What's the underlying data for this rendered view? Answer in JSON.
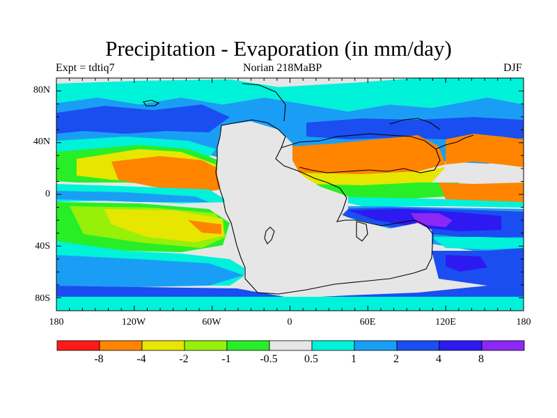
{
  "title": "Precipitation - Evaporation (in mm/day)",
  "experiment": "Expt = tdtiq7",
  "subtitle": "Norian   218MaBP",
  "season": "DJF",
  "lat_labels": [
    "80N",
    "40N",
    "0",
    "40S",
    "80S"
  ],
  "lon_labels": [
    "180",
    "120W",
    "60W",
    "0",
    "60E",
    "120E",
    "180"
  ],
  "colorbar": {
    "colors": [
      "#ff1a1a",
      "#ff8400",
      "#e6e600",
      "#96f00a",
      "#28ee28",
      "#e6e6e6",
      "#00f2d9",
      "#1a9ef5",
      "#1a4ef0",
      "#2c1af0",
      "#8c28f5"
    ],
    "labels": [
      "-8",
      "-4",
      "-2",
      "-1",
      "-0.5",
      "0.5",
      "1",
      "2",
      "4",
      "8"
    ]
  },
  "palette": {
    "bg": "#e6e6e6",
    "cyan": "#00f2d9",
    "lightblue": "#1a9ef5",
    "blue": "#1a4ef0",
    "indigo": "#2c1af0",
    "purple": "#8c28f5",
    "green": "#28ee28",
    "lime": "#96f00a",
    "yellow": "#e6e600",
    "orange": "#ff8400",
    "red": "#ff1a1a"
  }
}
